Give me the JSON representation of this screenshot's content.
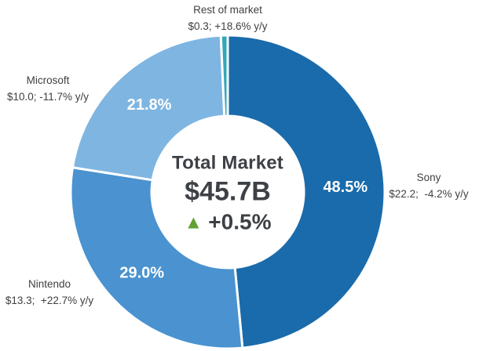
{
  "chart_data": {
    "type": "pie",
    "subtype": "donut",
    "title": "Total Market",
    "legend_position": "none",
    "center": {
      "title": "Total Market",
      "value": "$45.7B",
      "change": "+0.5%",
      "change_direction": "up",
      "change_icon": "▲",
      "change_color": "#61a135",
      "total_billions": 45.7,
      "total_yoy_pct": 0.5
    },
    "segments": [
      {
        "name": "Sony",
        "value_pct": 48.5,
        "pct_label": "48.5%",
        "sublabel": "$22.2;  -4.2% y/y",
        "revenue_billions": 22.2,
        "yoy_pct": -4.2,
        "color": "#1a6bab"
      },
      {
        "name": "Nintendo",
        "value_pct": 29.0,
        "pct_label": "29.0%",
        "sublabel": "$13.3;  +22.7% y/y",
        "revenue_billions": 13.3,
        "yoy_pct": 22.7,
        "color": "#4a92d0"
      },
      {
        "name": "Microsoft",
        "value_pct": 21.8,
        "pct_label": "21.8%",
        "sublabel": "$10.0; -11.7% y/y",
        "revenue_billions": 10.0,
        "yoy_pct": -11.7,
        "color": "#7fb5e1"
      },
      {
        "name": "Rest of market",
        "value_pct": 0.7,
        "pct_label": "",
        "sublabel": "$0.3; +18.6% y/y",
        "revenue_billions": 0.3,
        "yoy_pct": 18.6,
        "color": "#31a8b8"
      }
    ]
  }
}
